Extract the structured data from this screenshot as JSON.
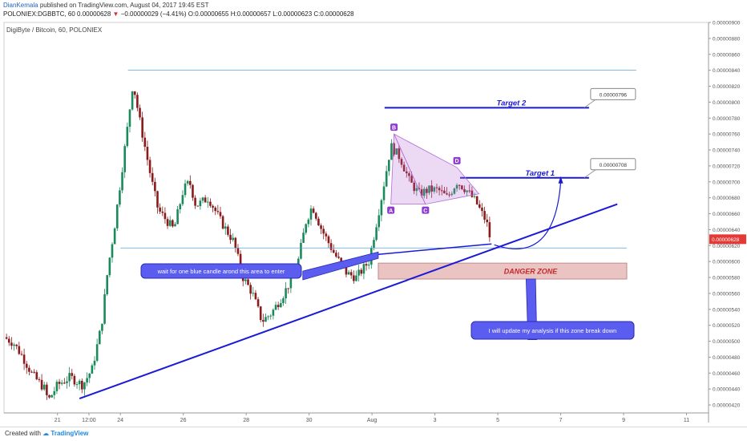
{
  "header": {
    "author": "DianKemala",
    "published": "published on TradingView.com, August 04, 2017 19:45 EST",
    "symbol": "POLONIEX:DGBBTC, 60",
    "price": "0.00000628",
    "change_arrow": "▼",
    "change": "−0.00000029 (−4.41%)",
    "ohlc": "O:0.00000655 H:0.00000657 L:0.00000623 C:0.00000628"
  },
  "chart_title": "DigiByte / Bitcoin, 60, POLONIEX",
  "footer": {
    "created": "Created with",
    "brand": "TradingView",
    "brand_icon": "tradingview-cloud-icon"
  },
  "colors": {
    "up": "#1a8a5a",
    "down": "#8b1a1a",
    "trend": "#1a1ad6",
    "callout": "#5b5cf0",
    "danger": "#e6b8b8",
    "pattern": "#b36bd6",
    "price_tag": "#e53935"
  },
  "chart_data": {
    "type": "candlestick",
    "symbol": "DGB/BTC",
    "interval": "60",
    "y_unit": "BTC",
    "ylim": [
      4.1e-06,
      9e-06
    ],
    "y_ticks": [
      "0.00000900",
      "0.00000880",
      "0.00000860",
      "0.00000840",
      "0.00000820",
      "0.00000800",
      "0.00000780",
      "0.00000760",
      "0.00000740",
      "0.00000720",
      "0.00000700",
      "0.00000680",
      "0.00000660",
      "0.00000640",
      "0.00000620",
      "0.00000600",
      "0.00000580",
      "0.00000560",
      "0.00000540",
      "0.00000520",
      "0.00000500",
      "0.00000480",
      "0.00000460",
      "0.00000440",
      "0.00000420"
    ],
    "x_ticks": [
      {
        "label": "21",
        "t": 1
      },
      {
        "label": "12:00",
        "t": 1.5
      },
      {
        "label": "24",
        "t": 2
      },
      {
        "label": "26",
        "t": 3
      },
      {
        "label": "28",
        "t": 4
      },
      {
        "label": "30",
        "t": 5
      },
      {
        "label": "Aug",
        "t": 6
      },
      {
        "label": "3",
        "t": 7
      },
      {
        "label": "5",
        "t": 8
      },
      {
        "label": "7",
        "t": 9
      },
      {
        "label": "9",
        "t": 10
      },
      {
        "label": "11",
        "t": 11
      }
    ],
    "x_range": [
      0.15,
      11.35
    ],
    "last_price": "0.00000628",
    "price_path": [
      [
        0.15,
        5.05e-06
      ],
      [
        0.3,
        4.98e-06
      ],
      [
        0.45,
        4.8e-06
      ],
      [
        0.6,
        4.58e-06
      ],
      [
        0.8,
        4.4e-06
      ],
      [
        0.85,
        4.25e-06
      ],
      [
        1.0,
        4.45e-06
      ],
      [
        1.2,
        4.55e-06
      ],
      [
        1.4,
        4.45e-06
      ],
      [
        1.55,
        4.65e-06
      ],
      [
        1.7,
        5.2e-06
      ],
      [
        1.8,
        5.9e-06
      ],
      [
        1.9,
        6.4e-06
      ],
      [
        2.0,
        7e-06
      ],
      [
        2.1,
        7.6e-06
      ],
      [
        2.2,
        8.25e-06
      ],
      [
        2.3,
        7.8e-06
      ],
      [
        2.4,
        7.4e-06
      ],
      [
        2.5,
        7e-06
      ],
      [
        2.6,
        6.65e-06
      ],
      [
        2.7,
        6.55e-06
      ],
      [
        2.85,
        6.4e-06
      ],
      [
        3.0,
        6.9e-06
      ],
      [
        3.1,
        7e-06
      ],
      [
        3.2,
        6.7e-06
      ],
      [
        3.4,
        6.8e-06
      ],
      [
        3.6,
        6.5e-06
      ],
      [
        3.8,
        6.25e-06
      ],
      [
        3.95,
        5.8e-06
      ],
      [
        4.1,
        5.6e-06
      ],
      [
        4.25,
        5.25e-06
      ],
      [
        4.4,
        5.35e-06
      ],
      [
        4.6,
        5.6e-06
      ],
      [
        4.8,
        5.9e-06
      ],
      [
        4.95,
        6.5e-06
      ],
      [
        5.05,
        6.7e-06
      ],
      [
        5.2,
        6.4e-06
      ],
      [
        5.4,
        6.1e-06
      ],
      [
        5.6,
        5.85e-06
      ],
      [
        5.75,
        5.8e-06
      ],
      [
        5.85,
        5.9e-06
      ],
      [
        5.95,
        6e-06
      ],
      [
        6.05,
        6.4e-06
      ],
      [
        6.15,
        6.8e-06
      ],
      [
        6.3,
        7.45e-06
      ],
      [
        6.45,
        7.3e-06
      ],
      [
        6.6,
        7e-06
      ],
      [
        6.75,
        6.85e-06
      ],
      [
        6.9,
        6.9e-06
      ],
      [
        7.05,
        6.9e-06
      ],
      [
        7.2,
        6.8e-06
      ],
      [
        7.35,
        7e-06
      ],
      [
        7.5,
        6.9e-06
      ],
      [
        7.65,
        6.75e-06
      ],
      [
        7.75,
        6.6e-06
      ],
      [
        7.82,
        6.5e-06
      ],
      [
        7.88,
        6.28e-06
      ]
    ],
    "horizontal_levels": [
      {
        "name": "resistance-top",
        "y": 8.4e-06,
        "t_start": 2.12,
        "t_end": 10.2
      },
      {
        "name": "support-line",
        "y": 6.17e-06,
        "t_start": 2.0,
        "t_end": 10.05
      },
      {
        "name": "target-2",
        "label": "Target 2",
        "value_label": "0.00000796",
        "y": 7.93e-06,
        "t_start": 6.2,
        "t_end": 9.45
      },
      {
        "name": "target-1",
        "label": "Target 1",
        "value_label": "0.00000708",
        "y": 7.05e-06,
        "t_start": 7.4,
        "t_end": 9.45
      }
    ],
    "trendlines": [
      {
        "name": "main-uptrend",
        "points": [
          [
            1.35,
            4.28e-06
          ],
          [
            9.9,
            6.72e-06
          ]
        ]
      },
      {
        "name": "inner-support",
        "points": [
          [
            6.1,
            6.09e-06
          ],
          [
            7.9,
            6.22e-06
          ]
        ]
      }
    ],
    "danger_zone": {
      "label": "DANGER ZONE",
      "y_top": 5.98e-06,
      "y_bottom": 5.78e-06,
      "t_start": 6.1,
      "t_end": 10.05
    },
    "harmonic_pattern": {
      "points": [
        {
          "label": "A",
          "t": 6.3,
          "y": 6.72e-06
        },
        {
          "label": "B",
          "t": 6.35,
          "y": 7.6e-06
        },
        {
          "label": "C",
          "t": 6.85,
          "y": 6.72e-06
        },
        {
          "label": "D",
          "t": 7.35,
          "y": 7.18e-06
        }
      ],
      "end": {
        "t": 7.7,
        "y": 6.85e-06
      }
    },
    "annotations": [
      {
        "name": "wait-callout",
        "text": "wait for one blue candle arond this area to enter"
      },
      {
        "name": "update-callout",
        "text": "I will update my analysis if this zone break down"
      }
    ]
  }
}
